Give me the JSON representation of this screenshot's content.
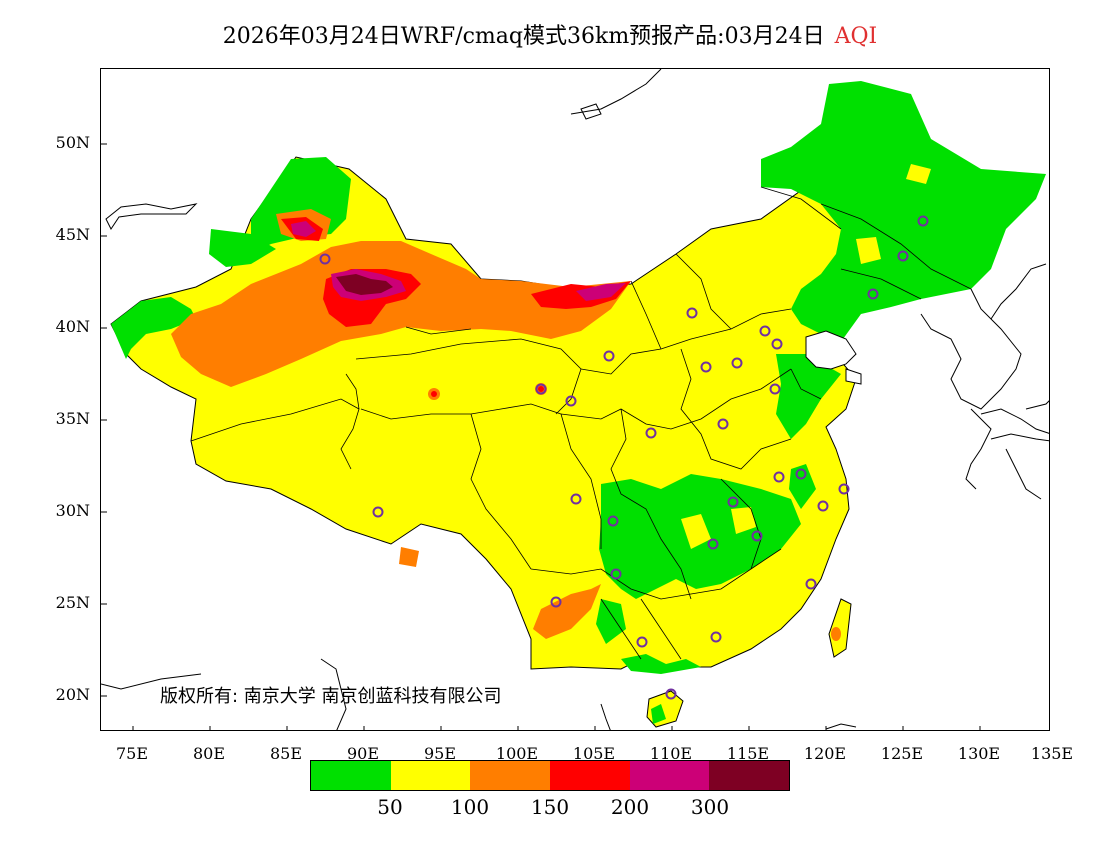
{
  "title": {
    "main": "2026年03月24日WRF/cmaq模式36km预报产品:03月24日",
    "product": "AQI"
  },
  "map": {
    "lat_labels": [
      "50N",
      "45N",
      "40N",
      "35N",
      "30N",
      "25N",
      "20N"
    ],
    "lon_labels": [
      "75E",
      "80E",
      "85E",
      "90E",
      "95E",
      "100E",
      "105E",
      "110E",
      "115E",
      "120E",
      "125E",
      "130E",
      "135E"
    ],
    "colors": {
      "good": "#00e000",
      "moderate": "#ffff00",
      "sensitive": "#ff7e00",
      "unhealthy": "#ff0000",
      "very_unhealthy": "#cc0077",
      "hazardous": "#7e0023",
      "station": "#7030a0"
    }
  },
  "copyright": "版权所有: 南京大学  南京创蓝科技有限公司",
  "legend": {
    "colors": [
      "#00e000",
      "#ffff00",
      "#ff7e00",
      "#ff0000",
      "#cc0077",
      "#7e0023"
    ],
    "labels": [
      "50",
      "100",
      "150",
      "200",
      "300"
    ]
  }
}
